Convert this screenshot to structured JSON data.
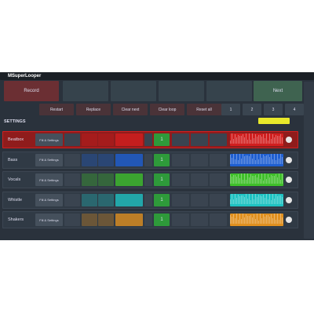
{
  "header": {
    "title": "MSuperLooper"
  },
  "transport": {
    "record": "Record",
    "next": "Next"
  },
  "actions": [
    "Restart",
    "Replace",
    "Clear next",
    "Clear loop",
    "Reset all"
  ],
  "slots": [
    "1",
    "2",
    "3",
    "4"
  ],
  "section": "SETTINGS",
  "tracks": [
    {
      "name": "Beatbox",
      "settings": "Fill & Settings",
      "slot": "1",
      "color": "#d11f1f"
    },
    {
      "name": "Bass",
      "settings": "Fill & Settings",
      "slot": "1",
      "color": "#1f5fd1"
    },
    {
      "name": "Vocals",
      "settings": "Fill & Settings",
      "slot": "1",
      "color": "#3fbf2a"
    },
    {
      "name": "Whistle",
      "settings": "Fill & Settings",
      "slot": "1",
      "color": "#1fc2c2"
    },
    {
      "name": "Shakers",
      "settings": "Fill & Settings",
      "slot": "1",
      "color": "#e0901f"
    }
  ]
}
